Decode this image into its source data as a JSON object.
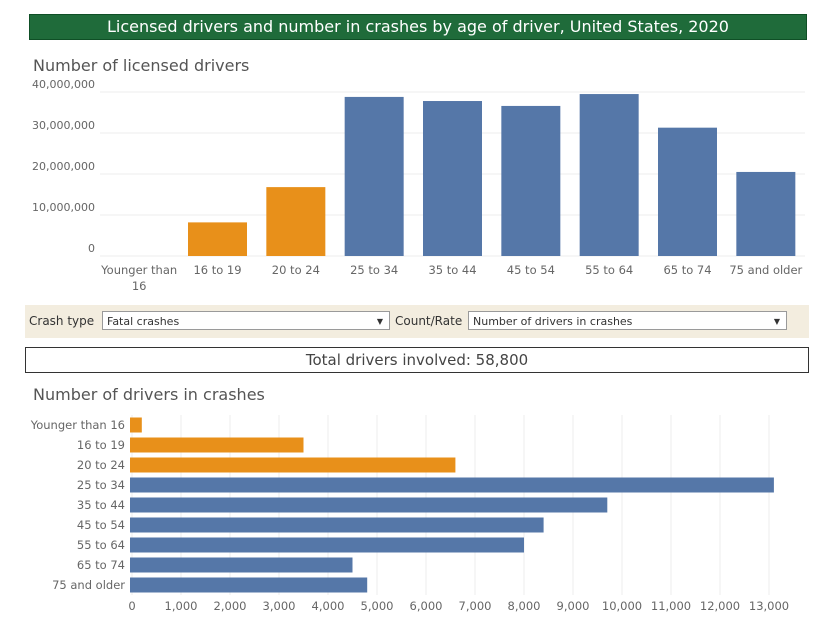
{
  "header": {
    "title": "Licensed drivers and number in crashes by age of driver, United States, 2020"
  },
  "filters": {
    "crash_type_label": "Crash type",
    "crash_type_value": "Fatal crashes",
    "count_rate_label": "Count/Rate",
    "count_rate_value": "Number of drivers in crashes"
  },
  "total": {
    "text": "Total drivers involved: 58,800"
  },
  "colors": {
    "young": "#e8901a",
    "adult": "#5577a8",
    "banner": "#1f6b3a"
  },
  "chart_data": [
    {
      "type": "bar",
      "title": "Number of licensed drivers",
      "categories": [
        "Younger than 16",
        "16 to 19",
        "20 to 24",
        "25 to 34",
        "35 to 44",
        "45 to 54",
        "55 to 64",
        "65 to 74",
        "75 and older"
      ],
      "values": [
        0,
        8200000,
        16800000,
        38800000,
        37800000,
        36600000,
        39500000,
        31300000,
        20500000
      ],
      "ylim": [
        0,
        40000000
      ],
      "yticks": [
        0,
        10000000,
        20000000,
        30000000,
        40000000
      ],
      "ytick_labels": [
        "0",
        "10,000,000",
        "20,000,000",
        "30,000,000",
        "40,000,000"
      ],
      "grid": true
    },
    {
      "type": "bar",
      "orientation": "horizontal",
      "title": "Number of drivers in crashes",
      "categories": [
        "Younger than 16",
        "16 to 19",
        "20 to 24",
        "25 to 34",
        "35 to 44",
        "45 to 54",
        "55 to 64",
        "65 to 74",
        "75 and older"
      ],
      "values": [
        200,
        3500,
        6600,
        13100,
        9700,
        8400,
        8000,
        4500,
        4800
      ],
      "xlim": [
        0,
        13500
      ],
      "xticks": [
        0,
        1000,
        2000,
        3000,
        4000,
        5000,
        6000,
        7000,
        8000,
        9000,
        10000,
        11000,
        12000,
        13000
      ],
      "xtick_labels": [
        "0",
        "1,000",
        "2,000",
        "3,000",
        "4,000",
        "5,000",
        "6,000",
        "7,000",
        "8,000",
        "9,000",
        "10,000",
        "11,000",
        "12,000",
        "13,000"
      ],
      "grid": true
    }
  ]
}
